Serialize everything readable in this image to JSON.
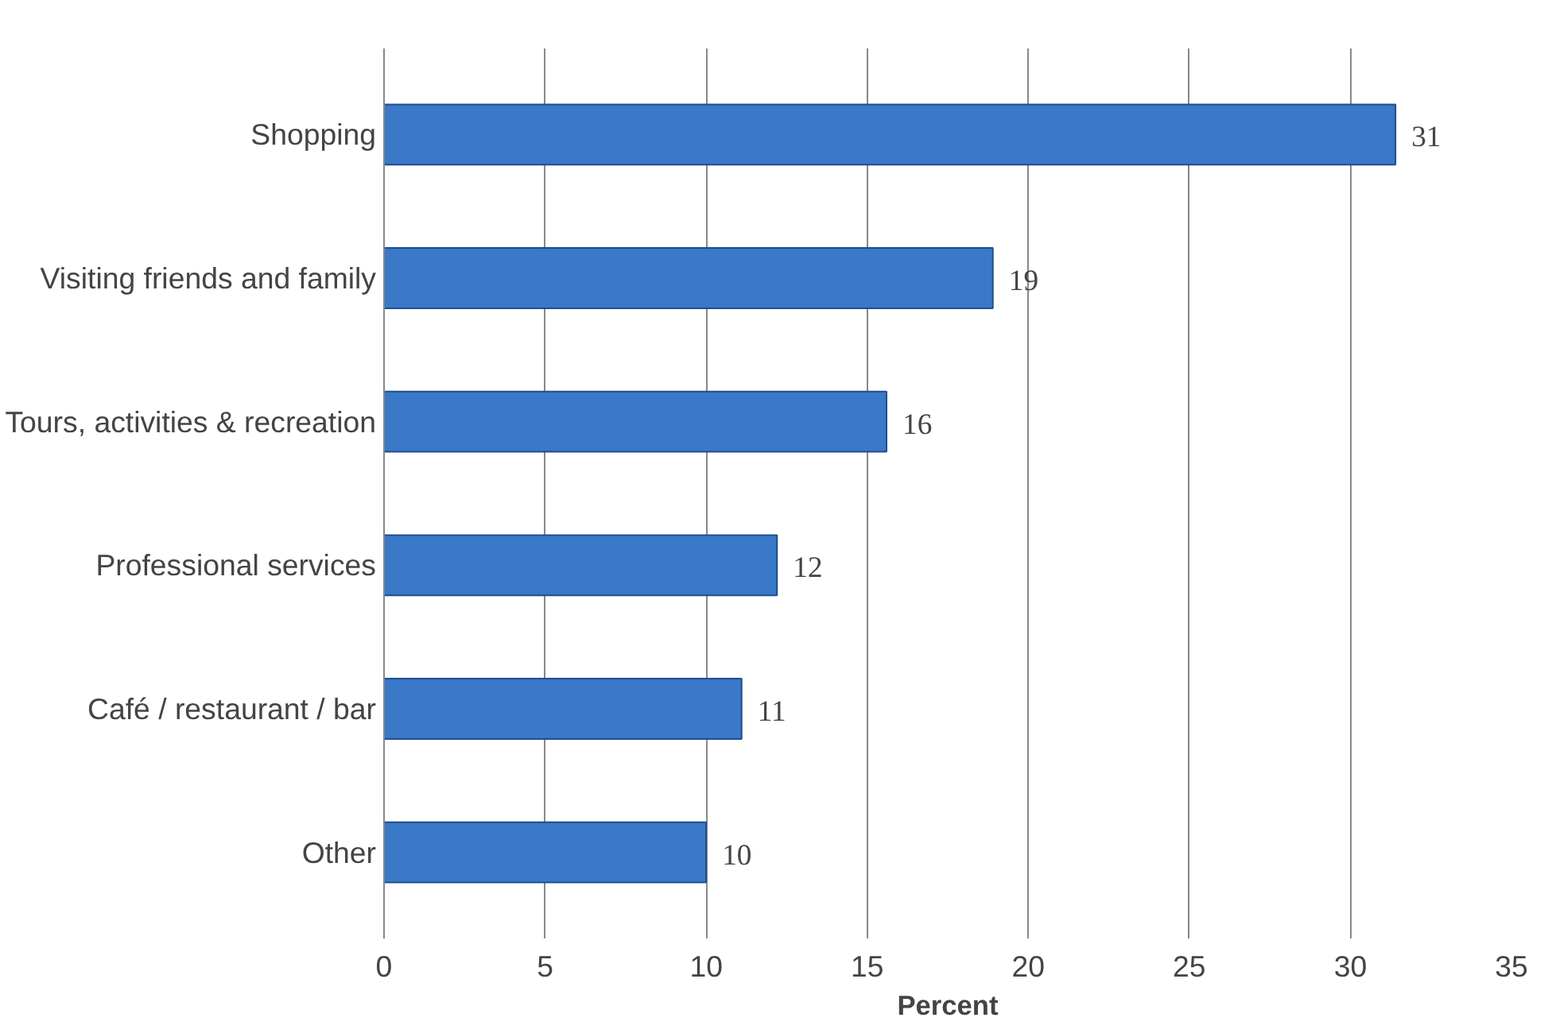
{
  "chart_data": {
    "type": "bar",
    "orientation": "horizontal",
    "xlabel": "Percent",
    "categories": [
      "Shopping",
      "Visiting friends and family",
      "Tours, activities & recreation",
      "Professional services",
      "Café / restaurant / bar",
      "Other"
    ],
    "values": [
      31.4,
      18.9,
      15.6,
      12.2,
      11.1,
      10.0
    ],
    "value_labels": [
      "31",
      "19",
      "16",
      "12",
      "11",
      "10"
    ],
    "color": "#3a78c8",
    "xlim": [
      0,
      35
    ],
    "xticks": [
      0,
      5,
      10,
      15,
      20,
      25,
      30,
      35
    ],
    "grid": "x"
  }
}
